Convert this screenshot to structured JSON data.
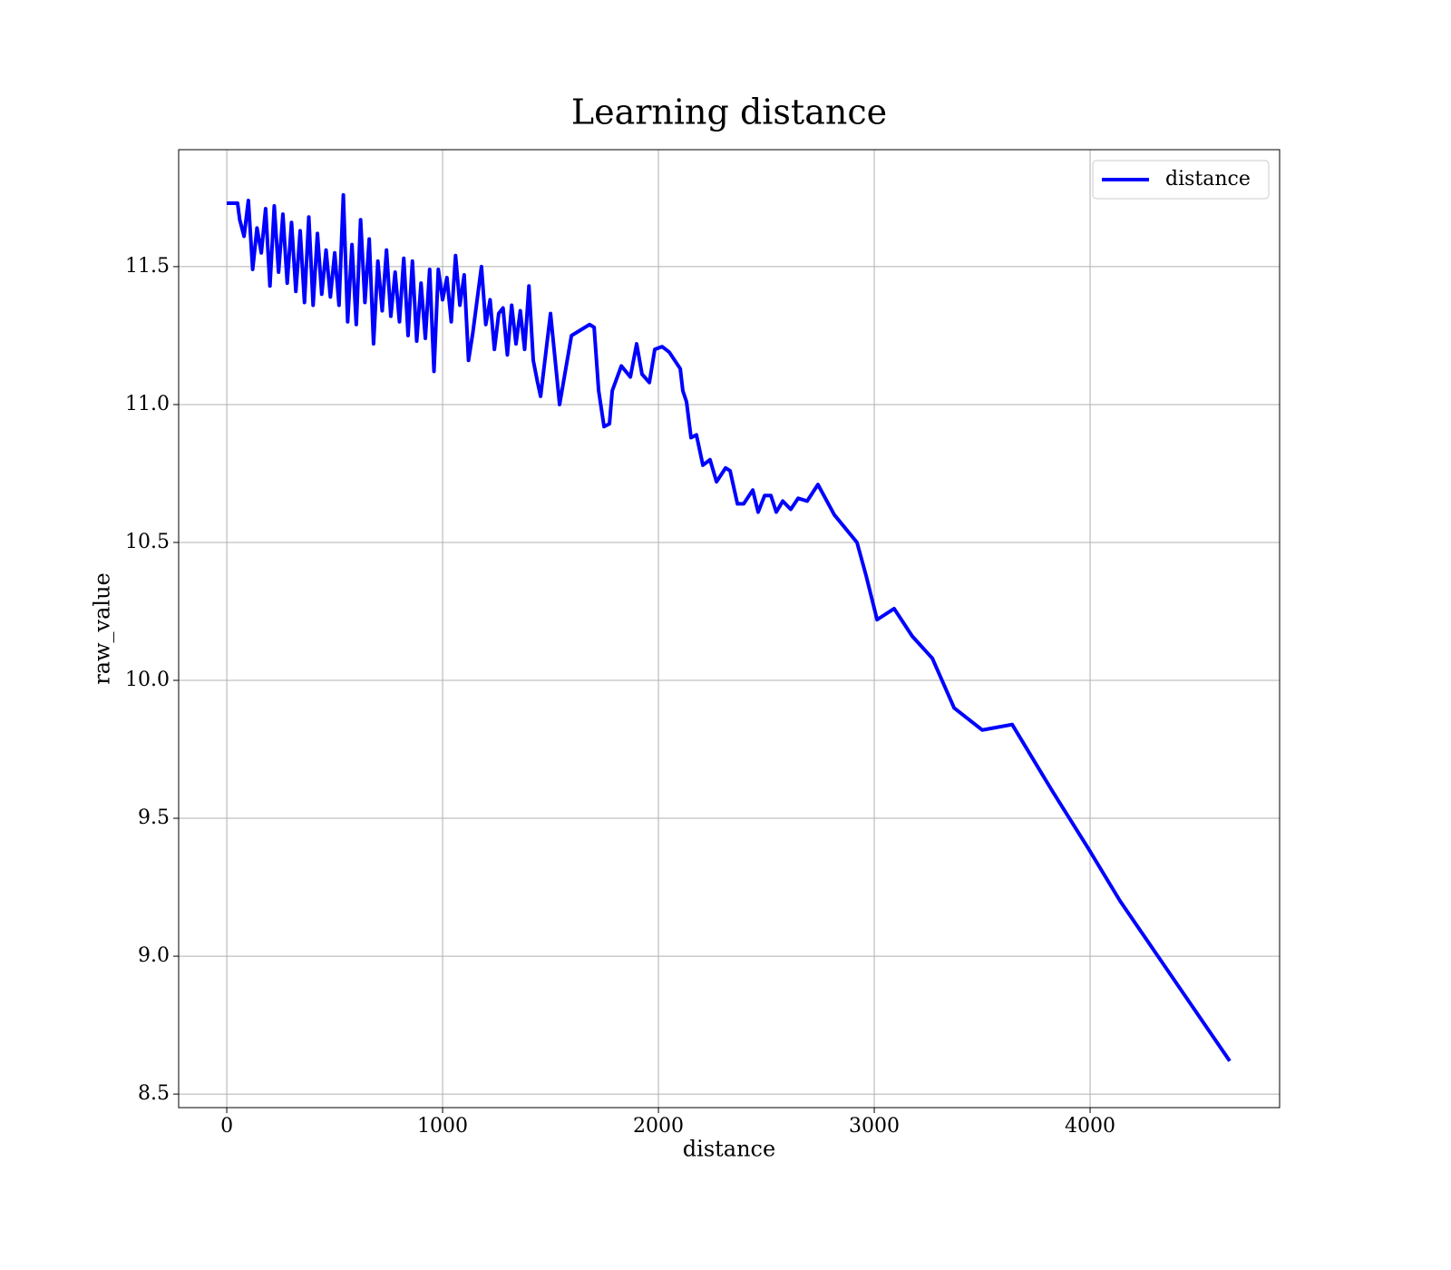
{
  "chart_data": {
    "type": "line",
    "title": "Learning distance",
    "x_label": "distance",
    "y_label": "raw_value",
    "x": [
      0,
      50,
      60,
      80,
      100,
      120,
      140,
      160,
      180,
      200,
      220,
      240,
      260,
      280,
      300,
      320,
      340,
      360,
      380,
      400,
      420,
      440,
      460,
      480,
      500,
      520,
      540,
      560,
      580,
      600,
      620,
      640,
      660,
      680,
      700,
      720,
      740,
      760,
      780,
      800,
      820,
      840,
      860,
      880,
      900,
      920,
      940,
      960,
      980,
      1000,
      1020,
      1040,
      1060,
      1080,
      1100,
      1120,
      1140,
      1160,
      1180,
      1200,
      1220,
      1240,
      1260,
      1280,
      1300,
      1320,
      1340,
      1360,
      1380,
      1400,
      1420,
      1440,
      1454,
      1500,
      1542,
      1597,
      1681,
      1702,
      1723,
      1748,
      1773,
      1786,
      1828,
      1870,
      1899,
      1924,
      1958,
      1983,
      2017,
      2050,
      2101,
      2113,
      2130,
      2151,
      2176,
      2206,
      2239,
      2269,
      2311,
      2332,
      2366,
      2395,
      2437,
      2462,
      2492,
      2521,
      2546,
      2576,
      2613,
      2647,
      2689,
      2739,
      2815,
      2920,
      2962,
      3013,
      3092,
      3176,
      3269,
      3370,
      3500,
      3639,
      3824,
      3992,
      4139,
      4647
    ],
    "series": [
      {
        "name": "distance",
        "color": "#0000ff",
        "values": [
          11.73,
          11.73,
          11.67,
          11.61,
          11.74,
          11.49,
          11.64,
          11.55,
          11.71,
          11.43,
          11.72,
          11.48,
          11.69,
          11.44,
          11.66,
          11.41,
          11.63,
          11.37,
          11.68,
          11.36,
          11.62,
          11.4,
          11.56,
          11.39,
          11.55,
          11.36,
          11.76,
          11.3,
          11.58,
          11.29,
          11.67,
          11.37,
          11.6,
          11.22,
          11.52,
          11.34,
          11.56,
          11.32,
          11.48,
          11.3,
          11.53,
          11.25,
          11.52,
          11.23,
          11.44,
          11.24,
          11.49,
          11.12,
          11.49,
          11.38,
          11.46,
          11.3,
          11.54,
          11.36,
          11.47,
          11.16,
          11.26,
          11.38,
          11.5,
          11.29,
          11.38,
          11.2,
          11.33,
          11.35,
          11.18,
          11.36,
          11.22,
          11.34,
          11.2,
          11.43,
          11.16,
          11.08,
          11.03,
          11.33,
          11.0,
          11.25,
          11.29,
          11.28,
          11.05,
          10.92,
          10.93,
          11.05,
          11.14,
          11.1,
          11.22,
          11.11,
          11.08,
          11.2,
          11.21,
          11.19,
          11.13,
          11.05,
          11.01,
          10.88,
          10.89,
          10.78,
          10.8,
          10.72,
          10.77,
          10.76,
          10.64,
          10.64,
          10.69,
          10.61,
          10.67,
          10.67,
          10.61,
          10.65,
          10.62,
          10.66,
          10.65,
          10.71,
          10.6,
          10.5,
          10.38,
          10.22,
          10.26,
          10.16,
          10.08,
          9.9,
          9.82,
          9.84,
          9.6,
          9.39,
          9.2,
          8.62
        ]
      }
    ],
    "xlim": [
      -223,
      4878
    ],
    "ylim": [
      8.451,
      11.924
    ],
    "xticks": [
      0,
      1000,
      2000,
      3000,
      4000
    ],
    "yticks": [
      8.5,
      {
        "value": 9,
        "label": "9.0"
      },
      9.5,
      {
        "value": 10,
        "label": "10.0"
      },
      10.5,
      {
        "value": 11,
        "label": "11.0"
      },
      11.5
    ],
    "grid": true,
    "legend": "upper right"
  }
}
